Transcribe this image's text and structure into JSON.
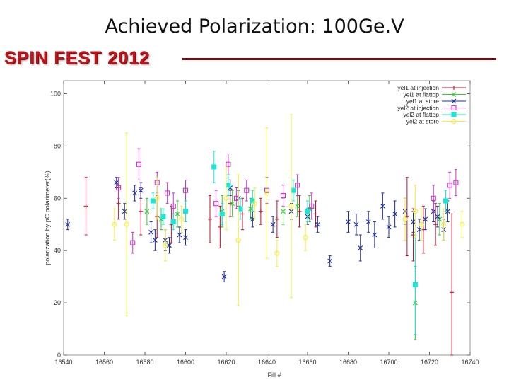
{
  "slide": {
    "title": "Achieved Polarization: 100Ge.V",
    "brand": "SPIN FEST 2012"
  },
  "colors": {
    "brand_red": "#c0141b",
    "rule": "#7a0a0e",
    "yel1_injection": "#c8102e",
    "yel1_flattop": "#33cc33",
    "yel1_store": "#1f2f9a",
    "yel2_injection": "#cc33cc",
    "yel2_flattop": "#19e6d6",
    "yel2_store": "#f2ef3c"
  },
  "chart_data": {
    "type": "scatter",
    "xlabel": "Fill #",
    "ylabel": "polarization by pC polarimeter(%)",
    "xlim": [
      16540,
      16740
    ],
    "ylim": [
      0,
      105
    ],
    "xticks": [
      "16540",
      "16560",
      "16580",
      "16600",
      "16620",
      "16640",
      "16660",
      "16680",
      "16700",
      "16720",
      "16740"
    ],
    "yticks": [
      "0",
      "20",
      "40",
      "60",
      "80",
      "100"
    ],
    "legend_position": "top-right",
    "series": [
      {
        "name": "yel1 at injection",
        "marker": "plus",
        "color": "#c8102e",
        "points": [
          {
            "x": 16551,
            "y": 57,
            "err": 11
          },
          {
            "x": 16567,
            "y": 58,
            "err": 6
          },
          {
            "x": 16578,
            "y": 55,
            "err": 9
          },
          {
            "x": 16586,
            "y": 53,
            "err": 8
          },
          {
            "x": 16593,
            "y": 50,
            "err": 7
          },
          {
            "x": 16612,
            "y": 52,
            "err": 9
          },
          {
            "x": 16617,
            "y": 49,
            "err": 8
          },
          {
            "x": 16622,
            "y": 58,
            "err": 5
          },
          {
            "x": 16628,
            "y": 54,
            "err": 6
          },
          {
            "x": 16637,
            "y": 55,
            "err": 5
          },
          {
            "x": 16645,
            "y": 52,
            "err": 7
          },
          {
            "x": 16656,
            "y": 55,
            "err": 6
          },
          {
            "x": 16664,
            "y": 54,
            "err": 5
          },
          {
            "x": 16709,
            "y": 53,
            "err": 15
          },
          {
            "x": 16712,
            "y": 46,
            "err": 10
          },
          {
            "x": 16717,
            "y": 48,
            "err": 9
          },
          {
            "x": 16723,
            "y": 50,
            "err": 8
          },
          {
            "x": 16731,
            "y": 24,
            "err": 30
          }
        ]
      },
      {
        "name": "yel1 at flattop",
        "marker": "x",
        "color": "#33cc33",
        "points": [
          {
            "x": 16581,
            "y": 55,
            "err": 5
          },
          {
            "x": 16588,
            "y": 52,
            "err": 4
          },
          {
            "x": 16596,
            "y": 54,
            "err": 5
          },
          {
            "x": 16618,
            "y": 55,
            "err": 6
          },
          {
            "x": 16623,
            "y": 58,
            "err": 5
          },
          {
            "x": 16632,
            "y": 56,
            "err": 4
          },
          {
            "x": 16648,
            "y": 55,
            "err": 5
          },
          {
            "x": 16655,
            "y": 57,
            "err": 4
          },
          {
            "x": 16661,
            "y": 56,
            "err": 5
          },
          {
            "x": 16713,
            "y": 20,
            "err": 14
          },
          {
            "x": 16725,
            "y": 52,
            "err": 6
          }
        ]
      },
      {
        "name": "yel1 at store",
        "marker": "x",
        "color": "#1f2f9a",
        "points": [
          {
            "x": 16542,
            "y": 50,
            "err": 2
          },
          {
            "x": 16566,
            "y": 66,
            "err": 2
          },
          {
            "x": 16570,
            "y": 55,
            "err": 3
          },
          {
            "x": 16575,
            "y": 62,
            "err": 3
          },
          {
            "x": 16578,
            "y": 63,
            "err": 3
          },
          {
            "x": 16583,
            "y": 47,
            "err": 4
          },
          {
            "x": 16585,
            "y": 44,
            "err": 4
          },
          {
            "x": 16590,
            "y": 44,
            "err": 4
          },
          {
            "x": 16592,
            "y": 42,
            "err": 3
          },
          {
            "x": 16597,
            "y": 46,
            "err": 3
          },
          {
            "x": 16600,
            "y": 45,
            "err": 3
          },
          {
            "x": 16619,
            "y": 30,
            "err": 2
          },
          {
            "x": 16622,
            "y": 64,
            "err": 3
          },
          {
            "x": 16626,
            "y": 60,
            "err": 3
          },
          {
            "x": 16633,
            "y": 52,
            "err": 3
          },
          {
            "x": 16643,
            "y": 50,
            "err": 3
          },
          {
            "x": 16652,
            "y": 55,
            "err": 3
          },
          {
            "x": 16660,
            "y": 53,
            "err": 3
          },
          {
            "x": 16665,
            "y": 50,
            "err": 3
          },
          {
            "x": 16671,
            "y": 36,
            "err": 2
          },
          {
            "x": 16680,
            "y": 51,
            "err": 4
          },
          {
            "x": 16684,
            "y": 50,
            "err": 4
          },
          {
            "x": 16686,
            "y": 41,
            "err": 5
          },
          {
            "x": 16690,
            "y": 51,
            "err": 4
          },
          {
            "x": 16693,
            "y": 46,
            "err": 5
          },
          {
            "x": 16697,
            "y": 57,
            "err": 5
          },
          {
            "x": 16700,
            "y": 49,
            "err": 4
          },
          {
            "x": 16703,
            "y": 54,
            "err": 5
          },
          {
            "x": 16708,
            "y": 55,
            "err": 5
          },
          {
            "x": 16712,
            "y": 51,
            "err": 4
          },
          {
            "x": 16715,
            "y": 48,
            "err": 4
          },
          {
            "x": 16718,
            "y": 52,
            "err": 4
          },
          {
            "x": 16722,
            "y": 55,
            "err": 4
          },
          {
            "x": 16724,
            "y": 53,
            "err": 4
          },
          {
            "x": 16727,
            "y": 48,
            "err": 4
          },
          {
            "x": 16729,
            "y": 55,
            "err": 4
          }
        ]
      },
      {
        "name": "yel2 at injection",
        "marker": "square-open",
        "color": "#cc33cc",
        "points": [
          {
            "x": 16567,
            "y": 64,
            "err": 4
          },
          {
            "x": 16574,
            "y": 43,
            "err": 4
          },
          {
            "x": 16577,
            "y": 73,
            "err": 6
          },
          {
            "x": 16586,
            "y": 66,
            "err": 4
          },
          {
            "x": 16591,
            "y": 62,
            "err": 4
          },
          {
            "x": 16594,
            "y": 57,
            "err": 5
          },
          {
            "x": 16600,
            "y": 63,
            "err": 4
          },
          {
            "x": 16615,
            "y": 58,
            "err": 5
          },
          {
            "x": 16621,
            "y": 73,
            "err": 4
          },
          {
            "x": 16625,
            "y": 60,
            "err": 4
          },
          {
            "x": 16630,
            "y": 63,
            "err": 4
          },
          {
            "x": 16640,
            "y": 63,
            "err": 5
          },
          {
            "x": 16648,
            "y": 61,
            "err": 4
          },
          {
            "x": 16655,
            "y": 65,
            "err": 4
          },
          {
            "x": 16662,
            "y": 57,
            "err": 5
          },
          {
            "x": 16722,
            "y": 60,
            "err": 5
          },
          {
            "x": 16730,
            "y": 65,
            "err": 5
          },
          {
            "x": 16733,
            "y": 66,
            "err": 5
          }
        ]
      },
      {
        "name": "yel2 at flattop",
        "marker": "square-filled",
        "color": "#19e6d6",
        "points": [
          {
            "x": 16584,
            "y": 59,
            "err": 3
          },
          {
            "x": 16589,
            "y": 53,
            "err": 3
          },
          {
            "x": 16594,
            "y": 51,
            "err": 3
          },
          {
            "x": 16600,
            "y": 55,
            "err": 4
          },
          {
            "x": 16614,
            "y": 72,
            "err": 6
          },
          {
            "x": 16618,
            "y": 54,
            "err": 4
          },
          {
            "x": 16621,
            "y": 65,
            "err": 4
          },
          {
            "x": 16627,
            "y": 56,
            "err": 4
          },
          {
            "x": 16633,
            "y": 59,
            "err": 4
          },
          {
            "x": 16653,
            "y": 63,
            "err": 4
          },
          {
            "x": 16660,
            "y": 55,
            "err": 4
          },
          {
            "x": 16713,
            "y": 27,
            "err": 19
          },
          {
            "x": 16728,
            "y": 59,
            "err": 4
          }
        ]
      },
      {
        "name": "yel2 at store",
        "marker": "circle-open",
        "color": "#f2ef3c",
        "points": [
          {
            "x": 16565,
            "y": 50,
            "err": 6
          },
          {
            "x": 16571,
            "y": 50,
            "err": 35
          },
          {
            "x": 16586,
            "y": 60,
            "err": 8
          },
          {
            "x": 16590,
            "y": 42,
            "err": 6
          },
          {
            "x": 16598,
            "y": 52,
            "err": 5
          },
          {
            "x": 16620,
            "y": 60,
            "err": 12
          },
          {
            "x": 16626,
            "y": 44,
            "err": 25
          },
          {
            "x": 16634,
            "y": 58,
            "err": 6
          },
          {
            "x": 16640,
            "y": 62,
            "err": 25
          },
          {
            "x": 16645,
            "y": 39,
            "err": 5
          },
          {
            "x": 16652,
            "y": 57,
            "err": 35
          },
          {
            "x": 16659,
            "y": 45,
            "err": 5
          },
          {
            "x": 16708,
            "y": 52,
            "err": 8
          },
          {
            "x": 16713,
            "y": 55,
            "err": 10
          },
          {
            "x": 16716,
            "y": 50,
            "err": 6
          },
          {
            "x": 16727,
            "y": 50,
            "err": 6
          },
          {
            "x": 16736,
            "y": 50,
            "err": 5
          }
        ]
      }
    ]
  }
}
